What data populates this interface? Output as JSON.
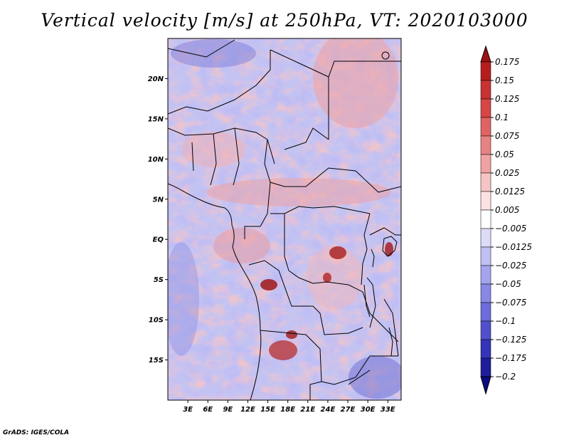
{
  "title": "Vertical velocity [m/s] at 250hPa, VT: 2020103000",
  "credit": "GrADS: IGES/COLA",
  "map": {
    "lon_range": [
      0,
      35
    ],
    "lat_range": [
      -20,
      25
    ],
    "lat_labels": [
      {
        "lat": 20,
        "text": "20N"
      },
      {
        "lat": 15,
        "text": "15N"
      },
      {
        "lat": 10,
        "text": "10N"
      },
      {
        "lat": 5,
        "text": "5N"
      },
      {
        "lat": 0,
        "text": "EQ"
      },
      {
        "lat": -5,
        "text": "5S"
      },
      {
        "lat": -10,
        "text": "10S"
      },
      {
        "lat": -15,
        "text": "15S"
      }
    ],
    "lon_labels": [
      {
        "lon": 3,
        "text": "3E"
      },
      {
        "lon": 6,
        "text": "6E"
      },
      {
        "lon": 9,
        "text": "9E"
      },
      {
        "lon": 12,
        "text": "12E"
      },
      {
        "lon": 15,
        "text": "15E"
      },
      {
        "lon": 18,
        "text": "18E"
      },
      {
        "lon": 21,
        "text": "21E"
      },
      {
        "lon": 24,
        "text": "24E"
      },
      {
        "lon": 27,
        "text": "27E"
      },
      {
        "lon": 30,
        "text": "30E"
      },
      {
        "lon": 33,
        "text": "33E"
      }
    ]
  },
  "colorbar": {
    "labels": [
      "0.175",
      "0.15",
      "0.125",
      "0.1",
      "0.075",
      "0.05",
      "0.025",
      "0.0125",
      "0.005",
      "−0.005",
      "−0.0125",
      "−0.025",
      "−0.05",
      "−0.075",
      "−0.1",
      "−0.125",
      "−0.175",
      "−0.2"
    ],
    "colors": [
      "#a01010",
      "#b61e1e",
      "#c83232",
      "#d64646",
      "#e06464",
      "#e88282",
      "#f0a2a2",
      "#f7c4c4",
      "#fce2e2",
      "#ffffff",
      "#dcdcf8",
      "#c0c0f4",
      "#a4a4ee",
      "#8888e6",
      "#6c6cdc",
      "#5050cc",
      "#3434b8",
      "#1e1e9a",
      "#0c0c80"
    ]
  }
}
